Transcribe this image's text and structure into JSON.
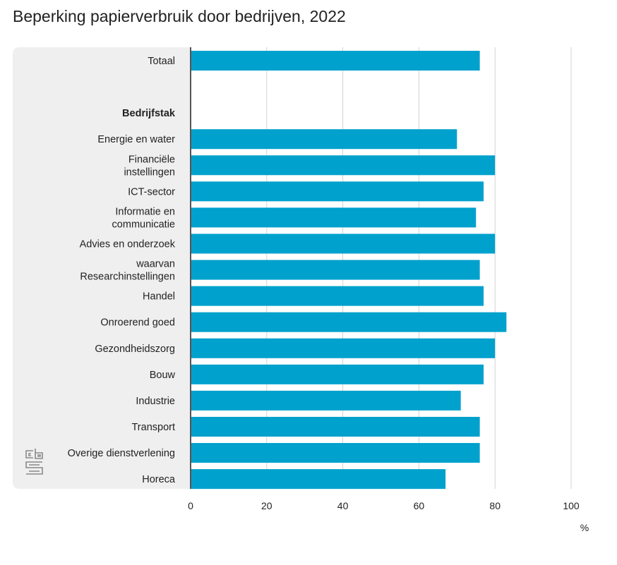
{
  "chart_data": {
    "type": "bar",
    "orientation": "horizontal",
    "title": "Beperking papierverbruik door bedrijven, 2022",
    "xlabel": "%",
    "ylabel": "",
    "xlim": [
      0,
      100
    ],
    "xticks": [
      0,
      20,
      40,
      60,
      80,
      100
    ],
    "grid": true,
    "legend": "none",
    "bar_color": "#00a1cd",
    "rows": [
      {
        "label": [
          "Totaal"
        ],
        "value": 76
      },
      {
        "label": [],
        "value": null
      },
      {
        "label": [
          "Bedrijfstak"
        ],
        "value": null,
        "heading": true
      },
      {
        "label": [
          "Energie en water"
        ],
        "value": 70
      },
      {
        "label": [
          "Financiële",
          "instellingen"
        ],
        "value": 80
      },
      {
        "label": [
          "ICT-sector"
        ],
        "value": 77
      },
      {
        "label": [
          "Informatie en",
          "communicatie"
        ],
        "value": 75
      },
      {
        "label": [
          "Advies en onderzoek"
        ],
        "value": 80
      },
      {
        "label": [
          "waarvan",
          "Researchinstellingen"
        ],
        "value": 76
      },
      {
        "label": [
          "Handel"
        ],
        "value": 77
      },
      {
        "label": [
          "Onroerend goed"
        ],
        "value": 83
      },
      {
        "label": [
          "Gezondheidszorg"
        ],
        "value": 80
      },
      {
        "label": [
          "Bouw"
        ],
        "value": 77
      },
      {
        "label": [
          "Industrie"
        ],
        "value": 71
      },
      {
        "label": [
          "Transport"
        ],
        "value": 76
      },
      {
        "label": [
          "Overige dienstverlening"
        ],
        "value": 76
      },
      {
        "label": [
          "Horeca"
        ],
        "value": 67
      }
    ]
  },
  "colors": {
    "bar": "#00a1cd",
    "panel": "#efefef",
    "grid": "#d3d3d3",
    "axis": "#555555",
    "text": "#222222"
  },
  "logo": {
    "name": "cbs-logo-icon",
    "text": "cbs"
  }
}
